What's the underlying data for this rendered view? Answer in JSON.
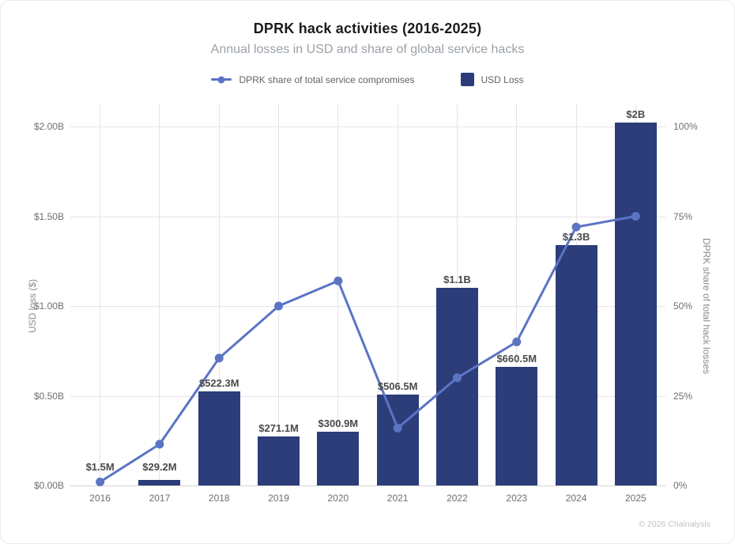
{
  "page": {
    "title": "DPRK hack activities (2016-2025)",
    "subtitle": "Annual losses in USD and share of global service hacks",
    "footer": "© 2026 Chainalysis"
  },
  "legend": {
    "line_label": "DPRK share of total service compromises",
    "bar_label": "USD Loss"
  },
  "colors": {
    "bar": "#2c3d7a",
    "line": "#5b74c4",
    "grid": "#e4e4e4",
    "axis_line": "#d6d6d6",
    "tick_text": "#6f6f6f",
    "axis_title_text": "#8a8a8a",
    "bar_label_text": "#4a4a4a",
    "title_text": "#1c1c1c",
    "subtitle_text": "#9aa1a9",
    "footer_text": "#c2c2c2"
  },
  "chart_data": {
    "type": "bar",
    "subtype": "dual-axis bar + line",
    "title": "DPRK hack activities (2016-2025)",
    "subtitle": "Annual losses in USD and share of global service hacks",
    "grid": true,
    "legend_position": "top",
    "categories": [
      "2016",
      "2017",
      "2018",
      "2019",
      "2020",
      "2021",
      "2022",
      "2023",
      "2024",
      "2025"
    ],
    "series": [
      {
        "name": "USD Loss",
        "type": "bar",
        "axis": "left",
        "unit": "USD millions",
        "values": [
          1.5,
          29.2,
          522.3,
          271.1,
          300.9,
          506.5,
          1100,
          660.5,
          1340,
          2020
        ],
        "labels": [
          "$1.5M",
          "$29.2M",
          "$522.3M",
          "$271.1M",
          "$300.9M",
          "$506.5M",
          "$1.1B",
          "$660.5M",
          "$1.3B",
          "$2B"
        ]
      },
      {
        "name": "DPRK share of total service compromises",
        "type": "line",
        "axis": "right",
        "unit": "percent",
        "values": [
          1,
          11.5,
          35.5,
          50,
          57,
          16,
          30,
          40,
          72,
          75
        ]
      }
    ],
    "left_axis": {
      "title": "USD loss ($)",
      "ticks": [
        "$2.00B",
        "$1.50B",
        "$1.00B",
        "$0.50B",
        "$0.00B"
      ],
      "min": 0,
      "max_musd": 2000
    },
    "right_axis": {
      "title": "DPRK share of total hack losses",
      "ticks": [
        "100%",
        "75%",
        "50%",
        "25%",
        "0%"
      ],
      "min": 0,
      "max_pct": 100
    }
  }
}
